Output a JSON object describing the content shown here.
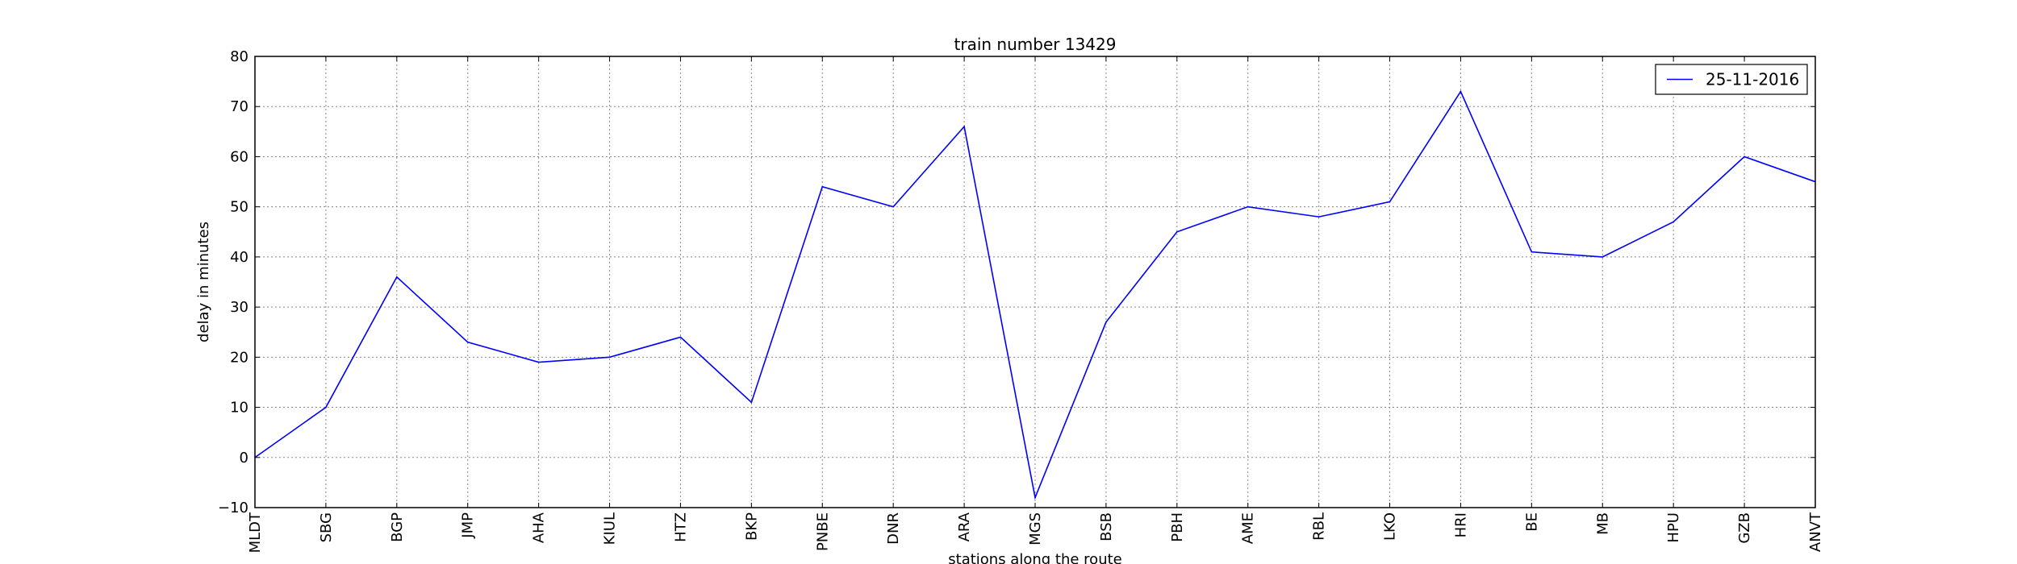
{
  "chart_data": {
    "type": "line",
    "title": "train number 13429",
    "xlabel": "stations along the route",
    "ylabel": "delay in minutes",
    "categories": [
      "MLDT",
      "SBG",
      "BGP",
      "JMP",
      "AHA",
      "KIUL",
      "HTZ",
      "BKP",
      "PNBE",
      "DNR",
      "ARA",
      "MGS",
      "BSB",
      "PBH",
      "AME",
      "RBL",
      "LKO",
      "HRI",
      "BE",
      "MB",
      "HPU",
      "GZB",
      "ANVT"
    ],
    "series": [
      {
        "name": "25-11-2016",
        "color": "#0000ff",
        "values": [
          0,
          10,
          36,
          23,
          19,
          20,
          24,
          11,
          54,
          50,
          66,
          -8,
          27,
          45,
          50,
          48,
          51,
          73,
          41,
          40,
          47,
          60,
          55
        ]
      }
    ],
    "ylim": [
      -10,
      80
    ],
    "yticks": [
      -10,
      0,
      10,
      20,
      30,
      40,
      50,
      60,
      70,
      80
    ],
    "ytick_labels": [
      "−10",
      "0",
      "10",
      "20",
      "30",
      "40",
      "50",
      "60",
      "70",
      "80"
    ],
    "grid": true,
    "legend_position": "upper right"
  }
}
